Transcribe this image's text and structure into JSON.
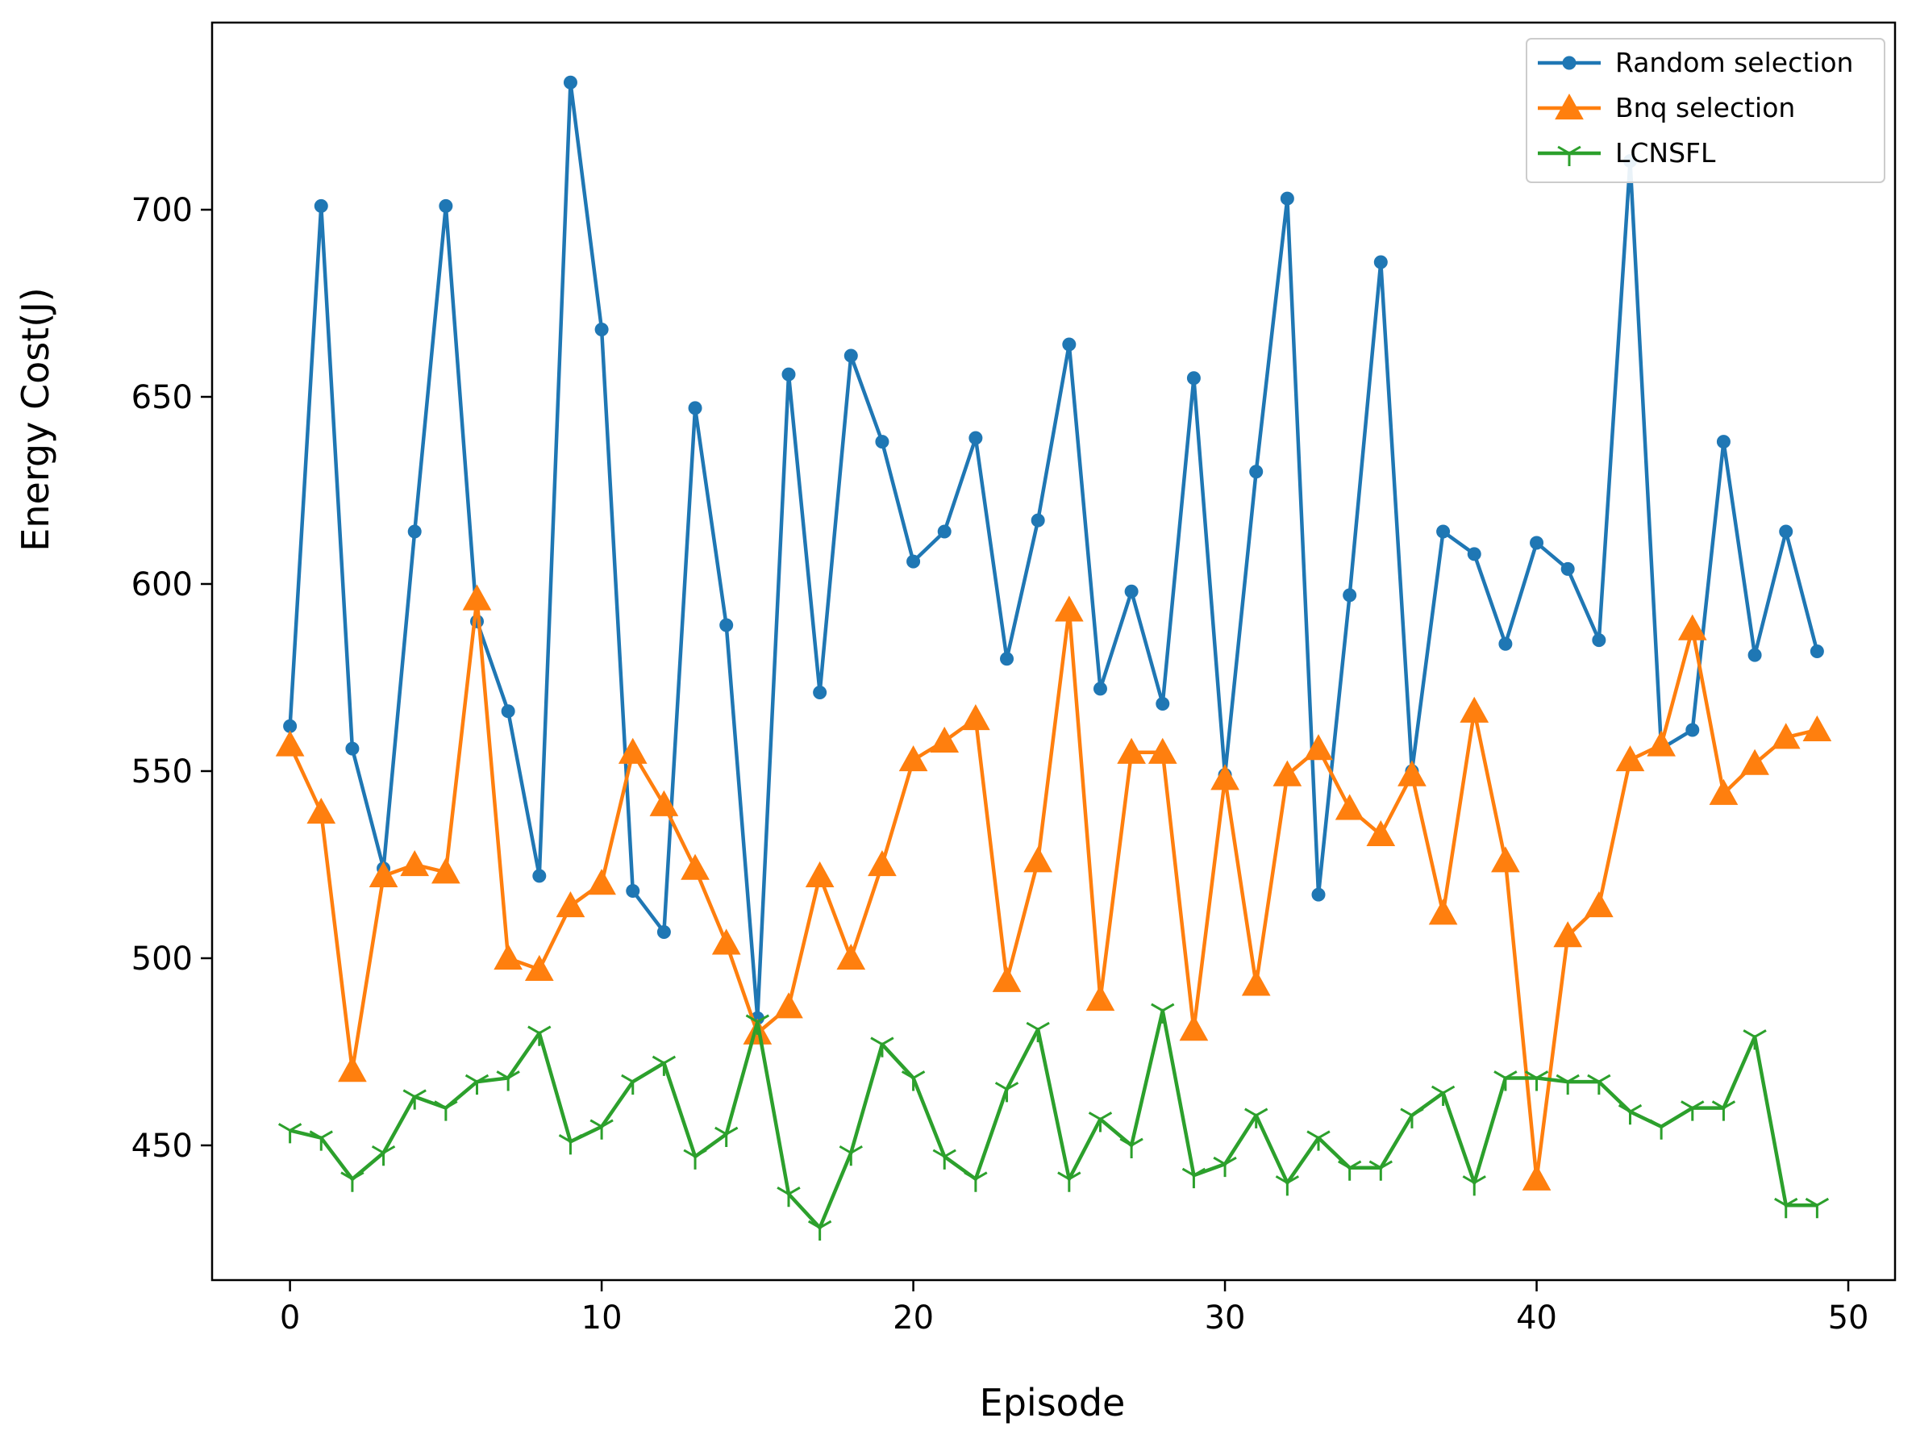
{
  "chart_data": {
    "type": "line",
    "title": "",
    "xlabel": "Episode",
    "ylabel": "Energy Cost(J)",
    "xlim": [
      -2.5,
      51.5
    ],
    "ylim": [
      414,
      750
    ],
    "xticks": [
      0,
      10,
      20,
      30,
      40,
      50
    ],
    "yticks": [
      450,
      500,
      550,
      600,
      650,
      700
    ],
    "grid": false,
    "legend_position": "top-right",
    "x": [
      0,
      1,
      2,
      3,
      4,
      5,
      6,
      7,
      8,
      9,
      10,
      11,
      12,
      13,
      14,
      15,
      16,
      17,
      18,
      19,
      20,
      21,
      22,
      23,
      24,
      25,
      26,
      27,
      28,
      29,
      30,
      31,
      32,
      33,
      34,
      35,
      36,
      37,
      38,
      39,
      40,
      41,
      42,
      43,
      44,
      45,
      46,
      47,
      48,
      49
    ],
    "series": [
      {
        "name": "Random selection",
        "color": "#1f77b4",
        "marker": "circle",
        "values": [
          562,
          701,
          556,
          524,
          614,
          701,
          590,
          566,
          522,
          734,
          668,
          518,
          507,
          647,
          589,
          484,
          656,
          571,
          661,
          638,
          606,
          614,
          639,
          580,
          617,
          664,
          572,
          598,
          568,
          655,
          549,
          630,
          703,
          517,
          597,
          686,
          550,
          614,
          608,
          584,
          611,
          604,
          585,
          713,
          556,
          561,
          638,
          581,
          614,
          582
        ]
      },
      {
        "name": "Bnq selection",
        "color": "#ff7f0e",
        "marker": "triangle",
        "values": [
          557,
          539,
          470,
          522,
          525,
          523,
          596,
          500,
          497,
          514,
          520,
          555,
          541,
          524,
          504,
          480,
          487,
          522,
          500,
          525,
          553,
          558,
          564,
          494,
          526,
          593,
          489,
          555,
          555,
          481,
          548,
          493,
          549,
          556,
          540,
          533,
          549,
          512,
          566,
          526,
          441,
          506,
          514,
          553,
          557,
          588,
          544,
          552,
          559,
          561
        ]
      },
      {
        "name": "LCNSFL",
        "color": "#2ca02c",
        "marker": "tri_down",
        "values": [
          454,
          452,
          441,
          448,
          463,
          460,
          467,
          468,
          480,
          451,
          455,
          467,
          472,
          447,
          453,
          483,
          437,
          428,
          448,
          477,
          468,
          447,
          441,
          465,
          481,
          441,
          457,
          450,
          486,
          442,
          445,
          458,
          440,
          452,
          444,
          444,
          458,
          464,
          440,
          468,
          468,
          467,
          467,
          459,
          455,
          460,
          460,
          479,
          434,
          434
        ]
      }
    ]
  }
}
